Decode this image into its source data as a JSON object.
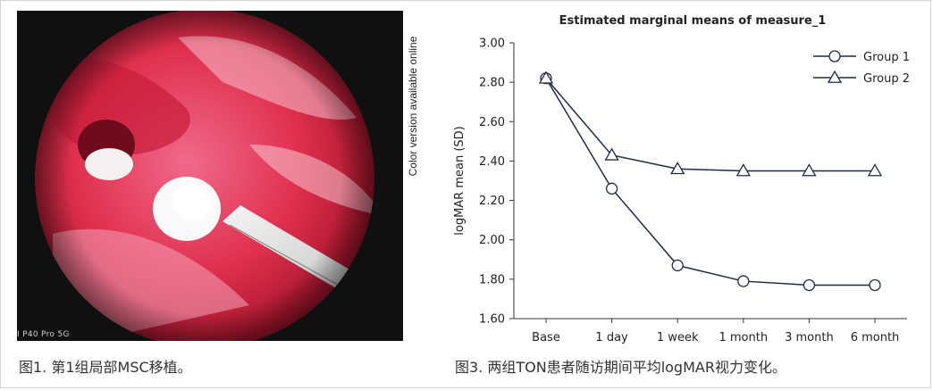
{
  "figure1": {
    "caption": "图1. 第1组局部MSC移植。",
    "watermark": "I P40 Pro 5G",
    "side_note": "Color version available online"
  },
  "figure3": {
    "caption": "图3. 两组TON患者随访期间平均logMAR视力变化。"
  },
  "chart_data": {
    "type": "line",
    "title": "Estimated marginal means of measure_1",
    "xlabel": "",
    "ylabel": "logMAR mean (SD)",
    "categories": [
      "Base",
      "1 day",
      "1 week",
      "1 month",
      "3 month",
      "6 month"
    ],
    "ylim": [
      1.6,
      3.0
    ],
    "yticks": [
      "1.60",
      "1.80",
      "2.00",
      "2.20",
      "2.40",
      "2.60",
      "2.80",
      "3.00"
    ],
    "legend_position": "top-right",
    "series": [
      {
        "name": "Group 1",
        "marker": "circle",
        "values": [
          2.82,
          2.26,
          1.87,
          1.79,
          1.77,
          1.77
        ]
      },
      {
        "name": "Group 2",
        "marker": "triangle",
        "values": [
          2.82,
          2.43,
          2.36,
          2.35,
          2.35,
          2.35
        ]
      }
    ],
    "colors": {
      "line": "#1f2a44",
      "axis": "#333333",
      "text": "#222222"
    }
  }
}
